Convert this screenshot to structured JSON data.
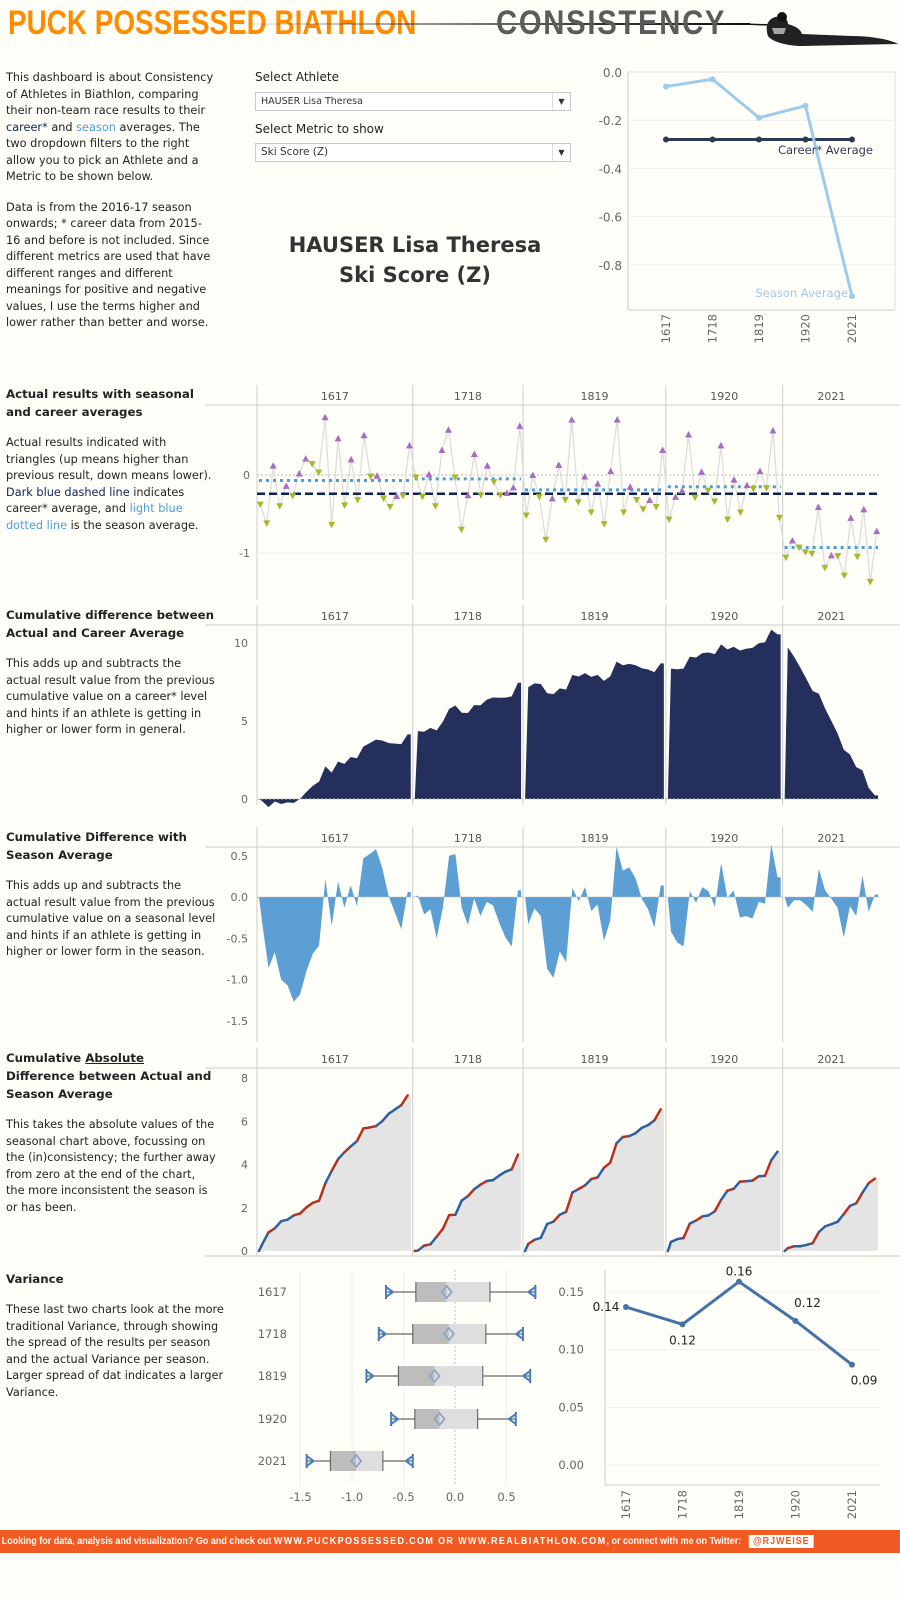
{
  "header": {
    "brand": "PUCK POSSESSED BIATHLON",
    "title": "CONSISTENCY",
    "logo_icon": "biathlete-prone-shooting-silhouette"
  },
  "intro": {
    "p1_a": "This dashboard is about Consistency of Athletes in Biathlon, comparing their non-team race results to their ",
    "p1_career": "career*",
    "p1_and": " and ",
    "p1_season": "season",
    "p1_b": " averages. The two dropdown filters to the right allow you to pick an Athlete and a Metric to be shown below.",
    "p2": "Data is from the 2016-17 season onwards; * career data from 2015-16 and before is not included. Since different metrics are used that have different ranges and different meanings for positive and negative values, I use the terms higher and lower rather than better and worse."
  },
  "filters": {
    "athlete_label": "Select Athlete",
    "athlete_value": "HAUSER Lisa Theresa",
    "metric_label": "Select Metric to show",
    "metric_value": "Ski Score (Z)"
  },
  "selection_title": {
    "athlete": "HAUSER Lisa Theresa",
    "metric": "Ski Score (Z)"
  },
  "sections": {
    "actual": {
      "title": "Actual results with seasonal and career averages",
      "t1": "Actual results indicated with triangles (up means higher than previous result, down means lower). ",
      "t_dark": "Dark blue dashed line",
      "t2": " indicates career* average, and ",
      "t_light": "light blue dotted line",
      "t3": " is the season average."
    },
    "cum_career": {
      "title": "Cumulative difference between Actual and Career Average",
      "text": "This adds up and subtracts the actual result value from the previous cumulative value on a career* level and hints if an athlete is getting in higher or lower form in general."
    },
    "cum_season": {
      "title": "Cumulative Difference with Season Average",
      "text": "This adds up and subtracts the actual result value from the previous cumulative value on a seasonal level and hints if an athlete is getting in higher or lower form in the season."
    },
    "cum_abs": {
      "title_a": "Cumulative ",
      "title_u": "Absolute",
      "title_b": " Difference between Actual and Season Average",
      "text": "This takes the absolute values of the seasonal chart above, focussing on the (in)consistency; the further away from zero at the end of the chart, the more inconsistent the season is or has been."
    },
    "variance": {
      "title": "Variance",
      "text": "These last two charts look at the more traditional Variance, through showing the spread of the results per season and the actual Variance per season. Larger spread of dat indicates a larger Variance."
    }
  },
  "colors": {
    "brand": "#ff8c00",
    "career": "#2d3a55",
    "season": "#9ecbec",
    "dashed_career": "#0d2358",
    "dotted_season": "#4a9fd8",
    "up": "#a86cc1",
    "down": "#a5b92b",
    "cum_career_fill": "#242f5c",
    "cum_season_fill": "#5b9fd4",
    "abs_fill": "#e4e4e4",
    "abs_above": "#b5321e",
    "abs_below": "#2e5f9e",
    "variance_line": "#4573a7",
    "footer": "#f15a22"
  },
  "chart_data": [
    {
      "type": "line",
      "categories": [
        "1617",
        "1718",
        "1819",
        "1920",
        "2021"
      ],
      "series": [
        {
          "name": "Career* Average",
          "values": [
            -0.28,
            -0.28,
            -0.28,
            -0.28,
            -0.28
          ]
        },
        {
          "name": "Season Average",
          "values": [
            -0.06,
            -0.03,
            -0.19,
            -0.14,
            -0.93
          ]
        }
      ],
      "yticks": [
        "0.0",
        "-0.2",
        "-0.4",
        "-0.6",
        "-0.8"
      ],
      "ylim": [
        -0.95,
        0.0
      ],
      "grid": true
    },
    {
      "type": "scatter",
      "seasons": [
        "1617",
        "1718",
        "1819",
        "1920",
        "2021"
      ],
      "results": [
        [
          -0.38,
          -0.62,
          0.12,
          -0.4,
          -0.14,
          -0.27,
          0.02,
          0.21,
          0.14,
          0.03,
          0.74,
          -0.64,
          0.47,
          -0.39,
          0.2,
          -0.32,
          0.51,
          -0.02,
          -0.01,
          -0.3,
          -0.41,
          -0.27,
          -0.27,
          0.38
        ],
        [
          -0.03,
          -0.28,
          0.01,
          -0.4,
          0.32,
          0.58,
          -0.03,
          -0.7,
          -0.26,
          0.27,
          -0.26,
          0.12,
          -0.09,
          -0.26,
          -0.23,
          -0.16,
          0.63
        ],
        [
          -0.52,
          0.0,
          -0.28,
          -0.83,
          -0.3,
          0.13,
          -0.32,
          0.71,
          -0.35,
          -0.02,
          -0.48,
          -0.11,
          -0.63,
          0.05,
          0.71,
          -0.48,
          -0.15,
          -0.32,
          -0.44,
          -0.32,
          -0.41,
          0.32
        ],
        [
          -0.57,
          -0.28,
          -0.2,
          0.52,
          -0.29,
          0.04,
          -0.2,
          -0.34,
          0.38,
          -0.57,
          -0.06,
          -0.48,
          -0.13,
          -0.18,
          0.05,
          -0.17,
          0.57,
          -0.55
        ],
        [
          -1.06,
          -0.84,
          -0.93,
          -0.99,
          -1.01,
          -0.41,
          -1.19,
          -1.03,
          -1.04,
          -1.29,
          -0.55,
          -1.05,
          -0.44,
          -1.37,
          -0.72
        ]
      ],
      "career_average": -0.24,
      "season_averages": [
        -0.07,
        -0.05,
        -0.19,
        -0.15,
        -0.93
      ],
      "yticks": [
        "0",
        "-1"
      ],
      "ylim": [
        -1.55,
        0.9
      ]
    },
    {
      "type": "area",
      "title_ref": "cum_career",
      "seasons": [
        "1617",
        "1718",
        "1819",
        "1920",
        "2021"
      ],
      "yticks": [
        "0",
        "5",
        "10"
      ],
      "ylim": [
        -0.5,
        11.5
      ]
    },
    {
      "type": "area",
      "title_ref": "cum_season",
      "seasons": [
        "1617",
        "1718",
        "1819",
        "1920",
        "2021"
      ],
      "yticks": [
        "0.5",
        "0.0",
        "-0.5",
        "-1.0",
        "-1.5"
      ],
      "ylim": [
        -1.7,
        0.6
      ]
    },
    {
      "type": "area",
      "title_ref": "cum_abs",
      "seasons": [
        "1617",
        "1718",
        "1819",
        "1920",
        "2021"
      ],
      "yticks": [
        "0",
        "2",
        "4",
        "6",
        "8"
      ],
      "ylim": [
        0,
        8.2
      ]
    },
    {
      "type": "boxplot",
      "categories": [
        "1617",
        "1718",
        "1819",
        "1920",
        "2021"
      ],
      "boxes": [
        {
          "min": -0.67,
          "q1": -0.38,
          "median": -0.08,
          "q3": 0.34,
          "max": 0.78
        },
        {
          "min": -0.74,
          "q1": -0.41,
          "median": -0.06,
          "q3": 0.3,
          "max": 0.66
        },
        {
          "min": -0.86,
          "q1": -0.55,
          "median": -0.2,
          "q3": 0.27,
          "max": 0.73
        },
        {
          "min": -0.62,
          "q1": -0.39,
          "median": -0.15,
          "q3": 0.22,
          "max": 0.59
        },
        {
          "min": -1.44,
          "q1": -1.21,
          "median": -0.96,
          "q3": -0.7,
          "max": -0.41
        }
      ],
      "xticks": [
        "-1.5",
        "-1.0",
        "-0.5",
        "0.0",
        "0.5"
      ],
      "xlim": [
        -1.65,
        0.85
      ]
    },
    {
      "type": "line",
      "categories": [
        "1617",
        "1718",
        "1819",
        "1920",
        "2021"
      ],
      "values": [
        0.137,
        0.122,
        0.159,
        0.125,
        0.087
      ],
      "labels": [
        "0.14",
        "0.12",
        "0.16",
        "0.12",
        "0.09"
      ],
      "yticks": [
        "0.15",
        "0.10",
        "0.05",
        "0.00"
      ],
      "ylim": [
        0,
        0.16
      ],
      "grid": true
    }
  ],
  "footer": {
    "text_a": "Looking for data, analysis and visualization? Go and check out ",
    "site1": "WWW.PUCKPOSSESSED.COM",
    "or": " OR ",
    "site2": "WWW.REALBIATHLON.COM",
    "text_b": ", or connect with me on Twitter:",
    "twitter": "@RJWEISE"
  }
}
